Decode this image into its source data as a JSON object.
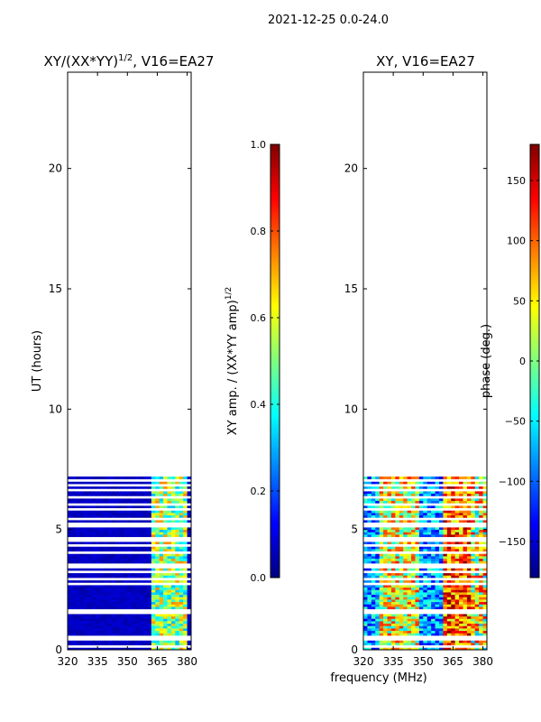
{
  "suptitle": "2021-12-25 0.0-24.0",
  "colors": {
    "jet": [
      "#00007f",
      "#0000ff",
      "#007fff",
      "#00ffff",
      "#7fff7f",
      "#ffff00",
      "#ff7f00",
      "#ff0000",
      "#7f0000"
    ],
    "background": "#ffffff"
  },
  "chart_data": [
    {
      "type": "heatmap",
      "id": "left",
      "title_main": "XY/(XX*YY)",
      "title_sup": "1/2",
      "title_tail": ", V16=EA27",
      "xlabel": "",
      "ylabel": "UT (hours)",
      "xlim": [
        320,
        382
      ],
      "ylim": [
        0,
        24
      ],
      "xticks": [
        320,
        335,
        350,
        365,
        380
      ],
      "yticks": [
        0,
        5,
        10,
        15,
        20
      ],
      "data_extent_hours": [
        0,
        7.1
      ],
      "cbar": {
        "label_main": "XY amp. / (XX*YY amp)",
        "label_sup": "1/2",
        "range": [
          0.0,
          1.0
        ],
        "ticks": [
          0.0,
          0.2,
          0.4,
          0.6,
          0.8,
          1.0
        ],
        "tick_labels": [
          "0.0",
          "0.2",
          "0.4",
          "0.6",
          "0.8",
          "1.0"
        ]
      }
    },
    {
      "type": "heatmap",
      "id": "right",
      "title_main": "XY, V16=EA27",
      "title_sup": "",
      "title_tail": "",
      "xlabel": "frequency (MHz)",
      "ylabel": "",
      "xlim": [
        320,
        382
      ],
      "ylim": [
        0,
        24
      ],
      "xticks": [
        320,
        335,
        350,
        365,
        380
      ],
      "yticks": [
        0,
        5,
        10,
        15,
        20
      ],
      "data_extent_hours": [
        0,
        7.1
      ],
      "cbar": {
        "label_main": "phase (deg.)",
        "label_sup": "",
        "range": [
          -180,
          180
        ],
        "ticks": [
          -150,
          -100,
          -50,
          0,
          50,
          100,
          150
        ],
        "tick_labels": [
          "−150",
          "−100",
          "−50",
          "0",
          "50",
          "100",
          "150"
        ]
      }
    }
  ]
}
